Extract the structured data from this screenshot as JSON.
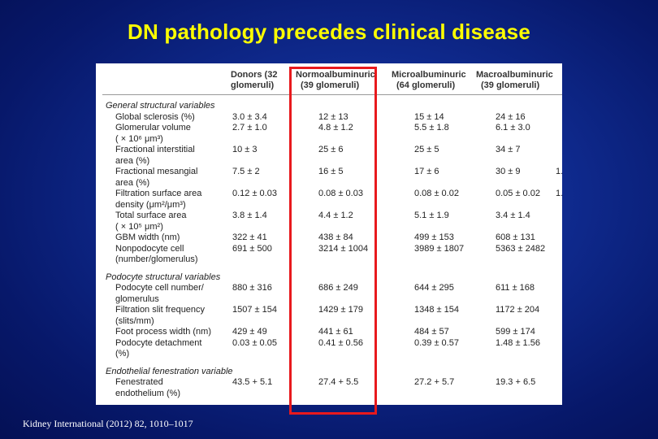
{
  "title": "DN pathology precedes clinical disease",
  "citation": "Kidney International (2012) 82, 1010–1017",
  "table": {
    "headers": [
      [
        "Donors (32",
        "glomeruli)"
      ],
      [
        "Normoalbuminuric",
        "(39 glomeruli)"
      ],
      [
        "Microalbuminuric",
        "(64 glomeruli)"
      ],
      [
        "Macroalbuminuric",
        "(39 glomeruli)"
      ]
    ],
    "sections": [
      {
        "title": "General structural variables",
        "rows": [
          {
            "label": "Global sclerosis (%)",
            "values": [
              "3.0 ± 3.4",
              "12 ± 13",
              "15 ± 14",
              "24 ± 16"
            ]
          },
          {
            "label": "Glomerular volume",
            "values": [
              "2.7 ± 1.0",
              "4.8 ± 1.2",
              "5.5 ± 1.8",
              "6.1 ± 3.0"
            ]
          },
          {
            "label": "( × 10⁶ μm³)",
            "values": [
              "",
              "",
              "",
              ""
            ]
          },
          {
            "label": "Fractional interstitial",
            "values": [
              "10 ± 3",
              "25 ± 6",
              "25 ± 5",
              "34 ± 7"
            ]
          },
          {
            "label": "area (%)",
            "values": [
              "",
              "",
              "",
              ""
            ]
          },
          {
            "label": "Fractional mesangial",
            "values": [
              "7.5 ± 2",
              "16 ± 5",
              "17 ± 6",
              "30 ± 9"
            ],
            "extra": "1."
          },
          {
            "label": "area (%)",
            "values": [
              "",
              "",
              "",
              ""
            ]
          },
          {
            "label": "Filtration surface area",
            "values": [
              "0.12 ± 0.03",
              "0.08 ± 0.03",
              "0.08 ± 0.02",
              "0.05 ± 0.02"
            ],
            "extra": "1."
          },
          {
            "label": "density (μm²/μm³)",
            "values": [
              "",
              "",
              "",
              ""
            ]
          },
          {
            "label": "Total surface area",
            "values": [
              "3.8 ± 1.4",
              "4.4 ± 1.2",
              "5.1 ± 1.9",
              "3.4 ± 1.4"
            ]
          },
          {
            "label": "( × 10⁵ μm²)",
            "values": [
              "",
              "",
              "",
              ""
            ]
          },
          {
            "label": "GBM width (nm)",
            "values": [
              "322 ± 41",
              "438 ± 84",
              "499 ± 153",
              "608 ± 131"
            ]
          },
          {
            "label": "Nonpodocyte cell",
            "values": [
              "691 ± 500",
              "3214 ± 1004",
              "3989 ± 1807",
              "5363 ± 2482"
            ]
          },
          {
            "label": "(number/glomerulus)",
            "values": [
              "",
              "",
              "",
              ""
            ]
          }
        ]
      },
      {
        "title": "Podocyte structural variables",
        "rows": [
          {
            "label": "Podocyte cell number/",
            "values": [
              "880 ± 316",
              "686 ± 249",
              "644 ± 295",
              "611 ± 168"
            ]
          },
          {
            "label": "glomerulus",
            "values": [
              "",
              "",
              "",
              ""
            ]
          },
          {
            "label": "Filtration slit frequency",
            "values": [
              "1507 ± 154",
              "1429 ± 179",
              "1348 ± 154",
              "1172 ± 204"
            ]
          },
          {
            "label": "(slits/mm)",
            "values": [
              "",
              "",
              "",
              ""
            ]
          },
          {
            "label": "Foot process width (nm)",
            "values": [
              "429 ± 49",
              "441 ± 61",
              "484 ± 57",
              "599 ± 174"
            ]
          },
          {
            "label": "Podocyte detachment",
            "values": [
              "0.03 ± 0.05",
              "0.41 ± 0.56",
              "0.39 ± 0.57",
              "1.48 ± 1.56"
            ]
          },
          {
            "label": "(%)",
            "values": [
              "",
              "",
              "",
              ""
            ]
          }
        ]
      },
      {
        "title": "Endothelial fenestration variable",
        "rows": [
          {
            "label": "Fenestrated",
            "values": [
              "43.5 + 5.1",
              "27.4 + 5.5",
              "27.2 + 5.7",
              "19.3 + 6.5"
            ]
          },
          {
            "label": "endothelium (%)",
            "values": [
              "",
              "",
              "",
              ""
            ]
          }
        ]
      }
    ]
  },
  "colors": {
    "title": "#ffff00",
    "highlight": "#e8191d",
    "background": "#0f2a8e"
  }
}
